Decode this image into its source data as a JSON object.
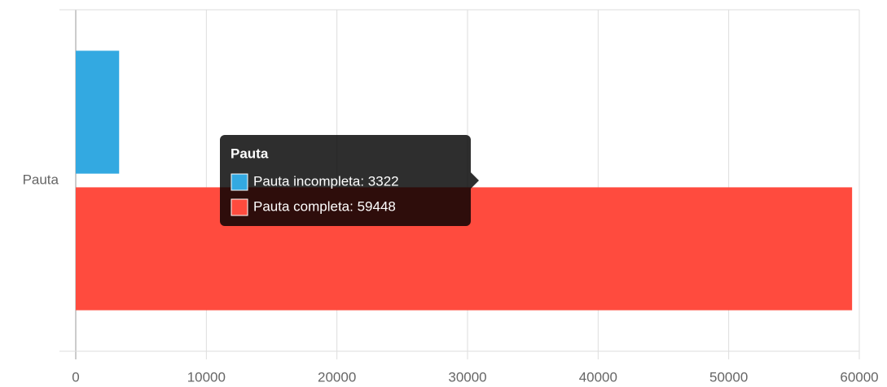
{
  "chart_data": {
    "type": "bar",
    "orientation": "horizontal",
    "categories": [
      "Pauta"
    ],
    "series": [
      {
        "name": "Pauta incompleta",
        "color": "#33a9e1",
        "values": [
          3322
        ]
      },
      {
        "name": "Pauta completa",
        "color": "#ff4b3e",
        "values": [
          59448
        ]
      }
    ],
    "xlim": [
      0,
      60000
    ],
    "xticks": [
      0,
      10000,
      20000,
      30000,
      40000,
      50000,
      60000
    ],
    "grid": true,
    "tooltip": {
      "items": [
        "Pauta incompleta: 3322",
        "Pauta completa: 59448"
      ]
    }
  }
}
